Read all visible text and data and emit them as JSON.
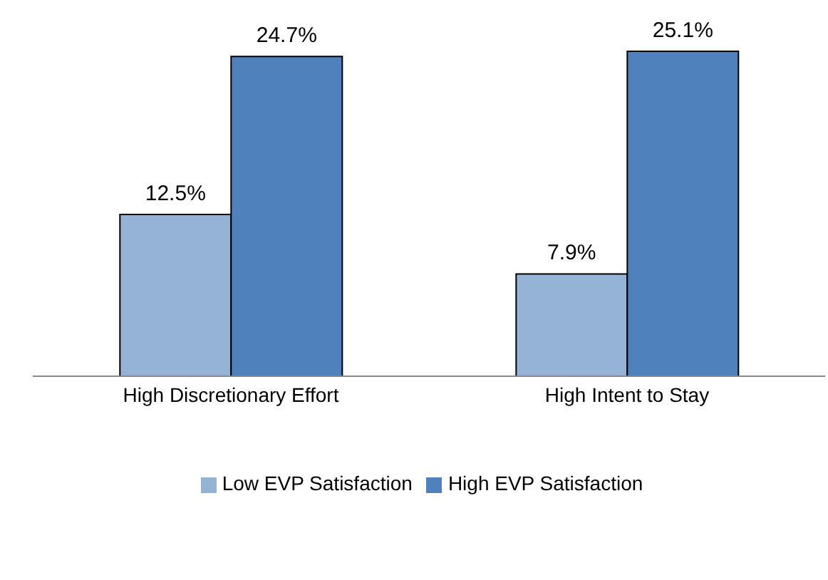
{
  "chart_data": {
    "type": "bar",
    "categories": [
      "High Discretionary Effort",
      "High Intent to Stay"
    ],
    "series": [
      {
        "name": "Low EVP Satisfaction",
        "color": "#95b3d7",
        "values": [
          12.5,
          7.9
        ],
        "value_labels": [
          "12.5%",
          "7.9%"
        ]
      },
      {
        "name": "High EVP Satisfaction",
        "color": "#4f81bd",
        "values": [
          24.7,
          25.1
        ],
        "value_labels": [
          "24.7%",
          "25.1%"
        ]
      }
    ],
    "legend": "bottom"
  }
}
